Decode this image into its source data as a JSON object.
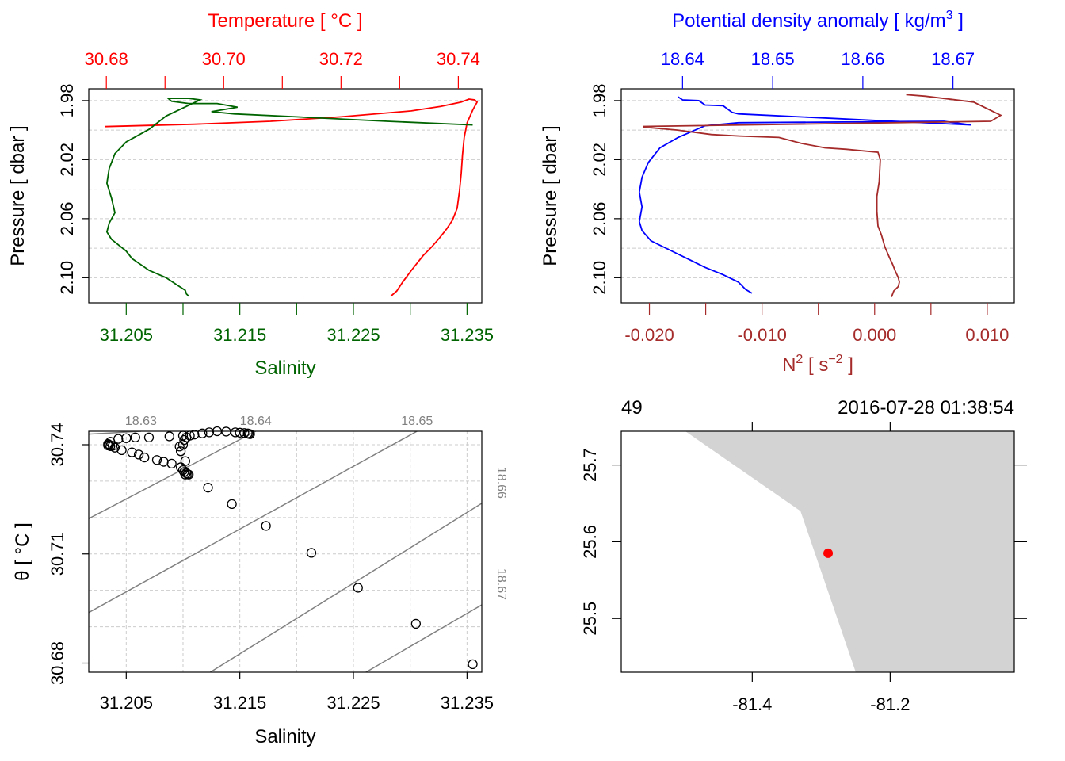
{
  "colors": {
    "temperature": "#ff0000",
    "salinity": "#006400",
    "density": "#0000ff",
    "n2": "#a52a2a",
    "contour": "#808080",
    "land": "#d3d3d3",
    "station": "#ff0000"
  },
  "chart_data": [
    {
      "type": "line",
      "name": "temperature-salinity-profile",
      "ylabel": "Pressure [ dbar ]",
      "ylim": [
        2.117,
        1.972
      ],
      "yticks": [
        "1.98",
        "2.02",
        "2.06",
        "2.10"
      ],
      "ygrid": [
        1.98,
        2.0,
        2.02,
        2.04,
        2.06,
        2.08,
        2.1
      ],
      "top_axis": {
        "label": "Temperature [ °C ]",
        "range": [
          30.677,
          30.744
        ],
        "ticks": [
          "30.68",
          "30.70",
          "30.72",
          "30.74"
        ],
        "minor": [
          30.69,
          30.71,
          30.73
        ]
      },
      "bottom_axis": {
        "label": "Salinity",
        "range": [
          31.2017,
          31.2363
        ],
        "ticks": [
          "31.205",
          "31.215",
          "31.225",
          "31.235"
        ],
        "minor": [
          31.21,
          31.22,
          31.23
        ]
      },
      "series": [
        {
          "name": "Temperature",
          "axis": "top",
          "x": [
            30.6797,
            30.695,
            30.708,
            30.72,
            30.732,
            30.737,
            30.7405,
            30.7418,
            30.7428,
            30.7432,
            30.7425,
            30.7415,
            30.741,
            30.7407,
            30.7405,
            30.7402,
            30.7398,
            30.739,
            30.738,
            30.7368,
            30.7355,
            30.734,
            30.732,
            30.7305,
            30.7295,
            30.7285
          ],
          "y": [
            1.9976,
            1.996,
            1.994,
            1.991,
            1.987,
            1.984,
            1.981,
            1.979,
            1.9795,
            1.981,
            1.986,
            1.995,
            2.005,
            2.017,
            2.029,
            2.041,
            2.053,
            2.061,
            2.067,
            2.073,
            2.079,
            2.085,
            2.095,
            2.103,
            2.109,
            2.1125
          ]
        },
        {
          "name": "Salinity",
          "axis": "bottom",
          "x": [
            31.2355,
            31.228,
            31.22,
            31.2145,
            31.2125,
            31.2148,
            31.213,
            31.2105,
            31.209,
            31.2087,
            31.2105,
            31.2115,
            31.2085,
            31.207,
            31.205,
            31.204,
            31.2035,
            31.2033,
            31.2037,
            31.204,
            31.2035,
            31.2033,
            31.2037,
            31.205,
            31.2055,
            31.207,
            31.2085,
            31.2095,
            31.2102,
            31.2103,
            31.2105
          ],
          "y": [
            1.9965,
            1.994,
            1.991,
            1.989,
            1.9875,
            1.9845,
            1.982,
            1.982,
            1.9805,
            1.9785,
            1.9785,
            1.9795,
            1.9905,
            1.9995,
            2.008,
            2.016,
            2.026,
            2.036,
            2.046,
            2.056,
            2.063,
            2.069,
            2.074,
            2.082,
            2.087,
            2.095,
            2.1,
            2.105,
            2.1085,
            2.111,
            2.1125
          ]
        }
      ]
    },
    {
      "type": "line",
      "name": "density-n2-profile",
      "ylabel": "Pressure [ dbar ]",
      "ylim": [
        2.117,
        1.972
      ],
      "yticks": [
        "1.98",
        "2.02",
        "2.06",
        "2.10"
      ],
      "ygrid": [
        1.98,
        2.0,
        2.02,
        2.04,
        2.06,
        2.08,
        2.1
      ],
      "top_axis": {
        "label_main": "Potential density anomaly [ kg/m",
        "label_sup": "3",
        "label_end": " ]",
        "range": [
          18.6332,
          18.6768
        ],
        "ticks": [
          "18.64",
          "18.65",
          "18.66",
          "18.67"
        ]
      },
      "bottom_axis": {
        "label_main": "N",
        "label_sup1": "2",
        "label_mid": " [ s",
        "label_sup2": "−2",
        "label_end": " ]",
        "range": [
          -0.0225,
          0.0124
        ],
        "ticks": [
          "-0.020",
          "-0.010",
          "0.000",
          "0.010"
        ],
        "minor": [
          -0.015,
          -0.005,
          0.005
        ]
      },
      "series": [
        {
          "name": "Potential density anomaly",
          "axis": "top",
          "x": [
            18.6395,
            18.64,
            18.6418,
            18.6425,
            18.6445,
            18.6455,
            18.6462,
            18.672,
            18.669,
            18.6462,
            18.6425,
            18.6395,
            18.6375,
            18.6362,
            18.6355,
            18.6352,
            18.6355,
            18.6352,
            18.6355,
            18.6365,
            18.6385,
            18.6405,
            18.6425,
            18.6445,
            18.6462,
            18.647,
            18.6477
          ],
          "y": [
            1.9775,
            1.9795,
            1.98,
            1.983,
            1.9835,
            1.988,
            1.989,
            1.9965,
            1.994,
            1.995,
            1.997,
            2.005,
            2.012,
            2.022,
            2.032,
            2.042,
            2.052,
            2.062,
            2.068,
            2.075,
            2.081,
            2.087,
            2.093,
            2.098,
            2.103,
            2.108,
            2.1105
          ]
        },
        {
          "name": "N2",
          "axis": "bottom",
          "x": [
            0.0028,
            0.0045,
            0.0088,
            0.0112,
            0.0103,
            -0.0205,
            -0.0205,
            -0.0175,
            -0.0145,
            -0.012,
            -0.0085,
            -0.0065,
            -0.0044,
            -0.0025,
            0.0003,
            0.0005,
            0.0004,
            0.0002,
            0.0002,
            0.0003,
            0.0006,
            0.0009,
            0.0013,
            0.0016,
            0.0018,
            0.0021,
            0.0022,
            0.0021,
            0.0017,
            0.0016,
            0.0015
          ],
          "y": [
            1.976,
            1.977,
            1.981,
            1.99,
            1.994,
            1.9975,
            1.998,
            2.0,
            2.003,
            2.004,
            2.005,
            2.009,
            2.012,
            2.013,
            2.015,
            2.02,
            2.035,
            2.045,
            2.055,
            2.065,
            2.071,
            2.079,
            2.086,
            2.091,
            2.095,
            2.1,
            2.103,
            2.106,
            2.109,
            2.111,
            2.113
          ]
        }
      ]
    },
    {
      "type": "scatter",
      "name": "ts-diagram",
      "xlabel": "Salinity",
      "ylabel_main": "θ [ °C ]",
      "xlim": [
        31.2017,
        31.2363
      ],
      "ylim": [
        30.6775,
        30.7437
      ],
      "xticks": [
        "31.205",
        "31.215",
        "31.225",
        "31.235"
      ],
      "xgrid": [
        31.205,
        31.21,
        31.215,
        31.22,
        31.225,
        31.23,
        31.235
      ],
      "yticks": [
        "30.68",
        "30.71",
        "30.74"
      ],
      "ygrid": [
        30.68,
        30.69,
        30.7,
        30.71,
        30.72,
        30.73,
        30.74
      ],
      "isopycnals": [
        {
          "label": "18.63",
          "start": [
            31.2017,
            30.7429
          ],
          "end": [
            31.2063,
            30.7437
          ],
          "label_side": "top"
        },
        {
          "label": "18.64",
          "start": [
            31.2017,
            30.7197
          ],
          "end": [
            31.2164,
            30.7437
          ],
          "label_side": "top"
        },
        {
          "label": "18.65",
          "start": [
            31.2017,
            30.6939
          ],
          "end": [
            31.2306,
            30.7437
          ],
          "label_side": "top"
        },
        {
          "label": "18.66",
          "start": [
            31.2124,
            30.6775
          ],
          "end": [
            31.2363,
            30.7239
          ],
          "label_side": "right"
        },
        {
          "label": "18.67",
          "start": [
            31.2261,
            30.6775
          ],
          "end": [
            31.2363,
            30.696
          ],
          "label_side": "right"
        }
      ],
      "points": [
        [
          31.2355,
          30.6797
        ],
        [
          31.2305,
          30.6908
        ],
        [
          31.2254,
          30.7007
        ],
        [
          31.2213,
          30.7103
        ],
        [
          31.2173,
          30.7177
        ],
        [
          31.2143,
          30.7237
        ],
        [
          31.2122,
          30.7282
        ],
        [
          31.2105,
          30.7318
        ],
        [
          31.2102,
          30.7355
        ],
        [
          31.2098,
          30.7382
        ],
        [
          31.2097,
          30.7395
        ],
        [
          31.21,
          30.74
        ],
        [
          31.2101,
          30.7413
        ],
        [
          31.2103,
          30.742
        ],
        [
          31.2106,
          30.7425
        ],
        [
          31.211,
          30.7428
        ],
        [
          31.2117,
          30.7431
        ],
        [
          31.2123,
          30.7434
        ],
        [
          31.213,
          30.7437
        ],
        [
          31.2138,
          30.7436
        ],
        [
          31.2146,
          30.7434
        ],
        [
          31.215,
          30.7433
        ],
        [
          31.2154,
          30.7432
        ],
        [
          31.2157,
          30.7431
        ],
        [
          31.2158,
          30.743
        ],
        [
          31.2159,
          30.7429
        ],
        [
          31.2088,
          30.7423
        ],
        [
          31.21,
          30.7425
        ],
        [
          31.207,
          30.742
        ],
        [
          31.2058,
          30.742
        ],
        [
          31.205,
          30.7418
        ],
        [
          31.2043,
          30.7416
        ],
        [
          31.2036,
          30.7408
        ],
        [
          31.2034,
          30.7402
        ],
        [
          31.2034,
          30.7398
        ],
        [
          31.2036,
          30.7396
        ],
        [
          31.2035,
          30.74
        ],
        [
          31.2038,
          30.7397
        ],
        [
          31.204,
          30.7392
        ],
        [
          31.2046,
          30.7385
        ],
        [
          31.2055,
          30.7379
        ],
        [
          31.2061,
          30.7373
        ],
        [
          31.2066,
          30.7365
        ],
        [
          31.2077,
          30.7358
        ],
        [
          31.2083,
          30.7353
        ],
        [
          31.209,
          30.7348
        ],
        [
          31.2098,
          30.7338
        ],
        [
          31.21,
          30.733
        ],
        [
          31.2103,
          30.7322
        ],
        [
          31.2104,
          30.7319
        ],
        [
          31.2102,
          30.7318
        ],
        [
          31.2101,
          30.7325
        ]
      ]
    },
    {
      "type": "map",
      "name": "station-map",
      "station_label": "49",
      "timestamp": "2016-07-28 01:38:54",
      "xlim": [
        -81.59,
        -81.02
      ],
      "ylim": [
        25.43,
        25.744
      ],
      "xticks": [
        "-81.4",
        "-81.2"
      ],
      "yticks": [
        "25.5",
        "25.6",
        "25.7"
      ],
      "land": [
        [
          -81.497,
          25.744
        ],
        [
          -81.02,
          25.744
        ],
        [
          -81.02,
          25.43
        ],
        [
          -81.25,
          25.43
        ],
        [
          -81.33,
          25.64
        ]
      ],
      "station": [
        -81.29,
        25.585
      ]
    }
  ]
}
